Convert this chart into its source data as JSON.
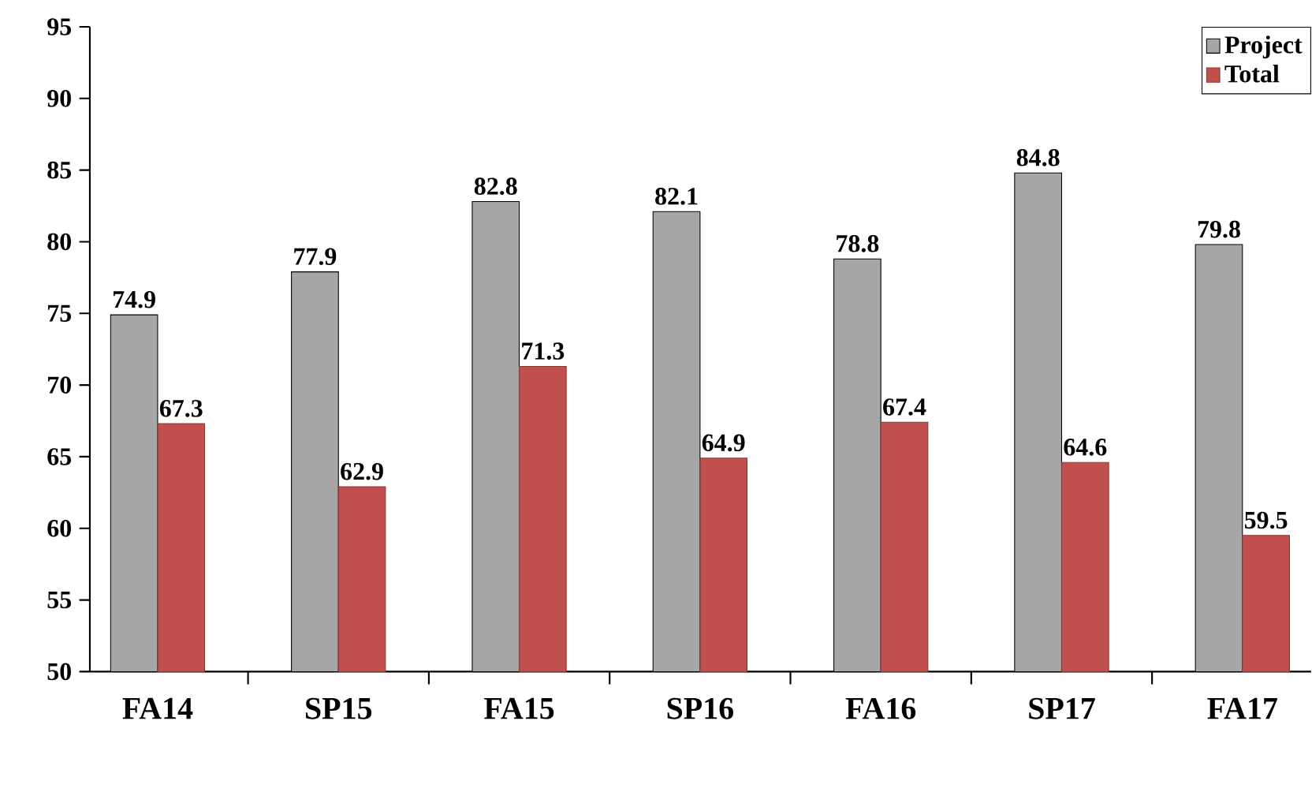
{
  "chart_data": {
    "type": "bar",
    "categories": [
      "FA14",
      "SP15",
      "FA15",
      "SP16",
      "FA16",
      "SP17",
      "FA17"
    ],
    "series": [
      {
        "name": "Project",
        "color": "#a6a6a6",
        "values": [
          74.9,
          77.9,
          82.8,
          82.1,
          78.8,
          84.8,
          79.8
        ]
      },
      {
        "name": "Total",
        "color": "#c0504d",
        "values": [
          67.3,
          62.9,
          71.3,
          64.9,
          67.4,
          64.6,
          59.5
        ]
      }
    ],
    "ylim": [
      50,
      95
    ],
    "yticks": [
      50,
      55,
      60,
      65,
      70,
      75,
      80,
      85,
      90,
      95
    ],
    "data_labels": true,
    "grid": false,
    "legend": "top right"
  }
}
